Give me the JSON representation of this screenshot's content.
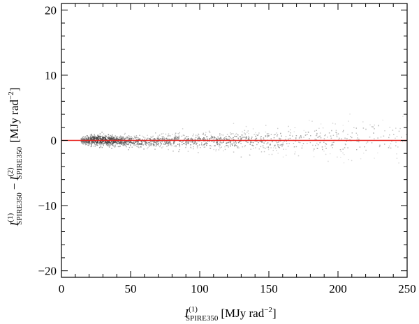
{
  "chart_data": {
    "type": "scatter",
    "title": "",
    "xlabel": {
      "main": "I",
      "superscript": "(1)",
      "subscript": "SPIRE350",
      "unit": "[MJy rad",
      "unit_exponent": "−2",
      "unit_close": "]"
    },
    "ylabel": {
      "term1_main": "I",
      "term1_superscript": "(1)",
      "term1_subscript": "SPIRE350",
      "minus": "−",
      "term2_main": "I",
      "term2_superscript": "(2)",
      "term2_subscript": "SPIRE350",
      "unit": "[MJy rad",
      "unit_exponent": "−2",
      "unit_close": "]"
    },
    "xlim": [
      0,
      250
    ],
    "ylim": [
      -21,
      21
    ],
    "x_ticks": [
      0,
      50,
      100,
      150,
      200,
      250
    ],
    "x_tick_labels": [
      "0",
      "50",
      "100",
      "150",
      "200",
      "250"
    ],
    "y_ticks": [
      -20,
      -10,
      0,
      10,
      20
    ],
    "y_tick_labels": [
      "−20",
      "−10",
      "0",
      "10",
      "20"
    ],
    "reference_line": {
      "y": 0,
      "color": "#e8201c"
    },
    "density_points": [
      {
        "x": 14,
        "y_lo": -0.4,
        "y_hi": 0.5,
        "density": 0.55
      },
      {
        "x": 20,
        "y_lo": -0.9,
        "y_hi": 1.1,
        "density": 0.8
      },
      {
        "x": 25,
        "y_lo": -1.0,
        "y_hi": 1.3,
        "density": 0.95
      },
      {
        "x": 30,
        "y_lo": -1.1,
        "y_hi": 1.3,
        "density": 0.95
      },
      {
        "x": 35,
        "y_lo": -1.0,
        "y_hi": 1.1,
        "density": 0.9
      },
      {
        "x": 40,
        "y_lo": -1.0,
        "y_hi": 1.0,
        "density": 0.85
      },
      {
        "x": 45,
        "y_lo": -1.1,
        "y_hi": 1.0,
        "density": 0.75
      },
      {
        "x": 50,
        "y_lo": -1.2,
        "y_hi": 1.0,
        "density": 0.65
      },
      {
        "x": 60,
        "y_lo": -1.3,
        "y_hi": 1.0,
        "density": 0.55
      },
      {
        "x": 70,
        "y_lo": -1.3,
        "y_hi": 1.1,
        "density": 0.5
      },
      {
        "x": 80,
        "y_lo": -1.4,
        "y_hi": 1.3,
        "density": 0.5
      },
      {
        "x": 90,
        "y_lo": -1.5,
        "y_hi": 1.5,
        "density": 0.5
      },
      {
        "x": 100,
        "y_lo": -1.6,
        "y_hi": 1.6,
        "density": 0.5
      },
      {
        "x": 110,
        "y_lo": -1.7,
        "y_hi": 1.7,
        "density": 0.48
      },
      {
        "x": 120,
        "y_lo": -1.8,
        "y_hi": 1.8,
        "density": 0.45
      },
      {
        "x": 130,
        "y_lo": -1.9,
        "y_hi": 1.9,
        "density": 0.4
      },
      {
        "x": 140,
        "y_lo": -2.0,
        "y_hi": 2.0,
        "density": 0.35
      },
      {
        "x": 150,
        "y_lo": -2.2,
        "y_hi": 2.3,
        "density": 0.3
      },
      {
        "x": 165,
        "y_lo": -2.6,
        "y_hi": 2.8,
        "density": 0.25
      },
      {
        "x": 180,
        "y_lo": -3.0,
        "y_hi": 3.3,
        "density": 0.2
      },
      {
        "x": 195,
        "y_lo": -3.4,
        "y_hi": 3.8,
        "density": 0.16
      },
      {
        "x": 210,
        "y_lo": -3.8,
        "y_hi": 4.3,
        "density": 0.13
      },
      {
        "x": 225,
        "y_lo": -4.2,
        "y_hi": 4.8,
        "density": 0.11
      },
      {
        "x": 240,
        "y_lo": -4.5,
        "y_hi": 5.2,
        "density": 0.09
      },
      {
        "x": 250,
        "y_lo": -4.7,
        "y_hi": 5.5,
        "density": 0.08
      }
    ]
  }
}
